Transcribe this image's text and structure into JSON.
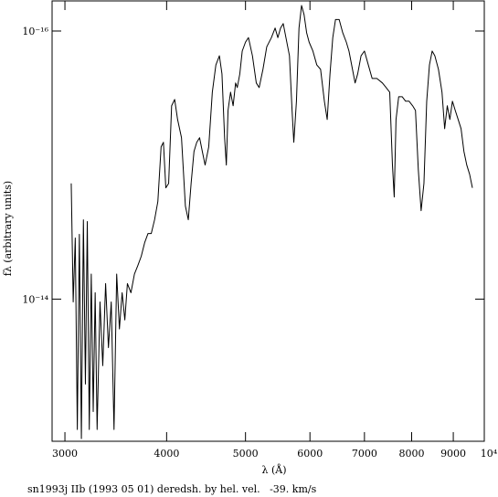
{
  "chart_data": {
    "type": "line",
    "xlabel": "λ (Å)",
    "ylabel": "fλ (arbitrary units)",
    "caption": "sn1993j IIb (1993 05 01) deredsh. by hel. vel.   -39. km/s",
    "xscale": "log",
    "yscale": "log",
    "color": "#000000",
    "xlim": [
      2893,
      9825
    ],
    "ylim": [
      1.15e-13,
      5.96e-17
    ],
    "xticks": [
      3000,
      4000,
      5000,
      6000,
      7000,
      8000,
      9000,
      {
        "value": 10000,
        "label": "10⁴"
      }
    ],
    "yticks": [
      {
        "value": 1e-16,
        "label": "10⁻¹⁶"
      },
      {
        "value": 1e-14,
        "label": "10⁻¹⁴"
      }
    ],
    "x": [
      3054,
      3071,
      3089,
      3107,
      3125,
      3143,
      3161,
      3179,
      3196,
      3214,
      3232,
      3250,
      3268,
      3286,
      3313,
      3339,
      3366,
      3393,
      3420,
      3447,
      3473,
      3500,
      3527,
      3554,
      3580,
      3616,
      3652,
      3688,
      3723,
      3759,
      3795,
      3830,
      3866,
      3902,
      3938,
      3964,
      3991,
      4023,
      4057,
      4092,
      4126,
      4172,
      4218,
      4253,
      4287,
      4322,
      4356,
      4391,
      4425,
      4460,
      4506,
      4552,
      4598,
      4644,
      4678,
      4713,
      4736,
      4759,
      4793,
      4828,
      4862,
      4885,
      4920,
      4954,
      5000,
      5042,
      5099,
      5155,
      5197,
      5253,
      5310,
      5380,
      5437,
      5479,
      5521,
      5563,
      5606,
      5662,
      5704,
      5732,
      5775,
      5817,
      5859,
      5901,
      5944,
      5986,
      6050,
      6117,
      6183,
      6250,
      6300,
      6350,
      6400,
      6450,
      6517,
      6583,
      6650,
      6700,
      6767,
      6817,
      6867,
      6933,
      7000,
      7077,
      7154,
      7250,
      7365,
      7442,
      7519,
      7577,
      7615,
      7654,
      7712,
      7788,
      7865,
      7942,
      8022,
      8087,
      8152,
      8217,
      8283,
      8348,
      8413,
      8478,
      8543,
      8630,
      8717,
      8783,
      8848,
      8913,
      8978,
      9050,
      9125,
      9200,
      9275,
      9350,
      9425,
      9500
    ],
    "values": [
      1.37e-15,
      1.05e-14,
      3.5e-15,
      9.4e-14,
      3.29e-15,
      1.1e-13,
      2.56e-15,
      4.3e-14,
      2.64e-15,
      9.4e-14,
      6.5e-15,
      6.9e-14,
      8.96e-15,
      9.4e-14,
      1.05e-14,
      3.14e-14,
      7.66e-15,
      2.3e-14,
      1.05e-14,
      9.4e-14,
      6.5e-15,
      1.67e-14,
      8.96e-15,
      1.43e-14,
      7.66e-15,
      8.96e-15,
      6.5e-15,
      5.6e-15,
      4.79e-15,
      3.79e-15,
      3.24e-15,
      3.24e-15,
      2.56e-15,
      1.87e-15,
      7.31e-16,
      6.76e-16,
      1.48e-15,
      1.37e-15,
      3.61e-16,
      3.24e-16,
      4.57e-16,
      6.25e-16,
      2.02e-15,
      2.56e-15,
      1.37e-15,
      7.91e-16,
      6.76e-16,
      6.25e-16,
      7.91e-16,
      1e-15,
      7.31e-16,
      2.86e-16,
      1.79e-16,
      1.53e-16,
      2.09e-16,
      6.25e-16,
      1e-15,
      3.91e-16,
      2.86e-16,
      3.61e-16,
      2.44e-16,
      2.64e-16,
      2.09e-16,
      1.41e-16,
      1.21e-16,
      1.12e-16,
      1.53e-16,
      2.44e-16,
      2.64e-16,
      1.93e-16,
      1.31e-16,
      1.12e-16,
      9.5e-17,
      1.12e-16,
      9.5e-17,
      8.8e-17,
      1.12e-16,
      1.53e-16,
      3.91e-16,
      6.76e-16,
      3.34e-16,
      9.5e-17,
      6.45e-17,
      7.55e-17,
      1.03e-16,
      1.21e-16,
      1.41e-16,
      1.79e-16,
      1.93e-16,
      3.34e-16,
      4.57e-16,
      2.09e-16,
      1.12e-16,
      8.2e-17,
      8.2e-17,
      1.03e-16,
      1.21e-16,
      1.41e-16,
      1.93e-16,
      2.44e-16,
      2.09e-16,
      1.53e-16,
      1.41e-16,
      1.79e-16,
      2.26e-16,
      2.26e-16,
      2.44e-16,
      2.64e-16,
      2.86e-16,
      1e-15,
      1.73e-15,
      4.57e-16,
      3.09e-16,
      3.09e-16,
      3.34e-16,
      3.34e-16,
      3.61e-16,
      3.91e-16,
      1.08e-15,
      2.19e-15,
      1.37e-15,
      3.34e-16,
      1.79e-16,
      1.41e-16,
      1.53e-16,
      1.93e-16,
      2.86e-16,
      5.35e-16,
      3.61e-16,
      4.57e-16,
      3.34e-16,
      3.91e-16,
      4.57e-16,
      5.35e-16,
      7.91e-16,
      1e-15,
      1.17e-15,
      1.48e-15
    ]
  }
}
